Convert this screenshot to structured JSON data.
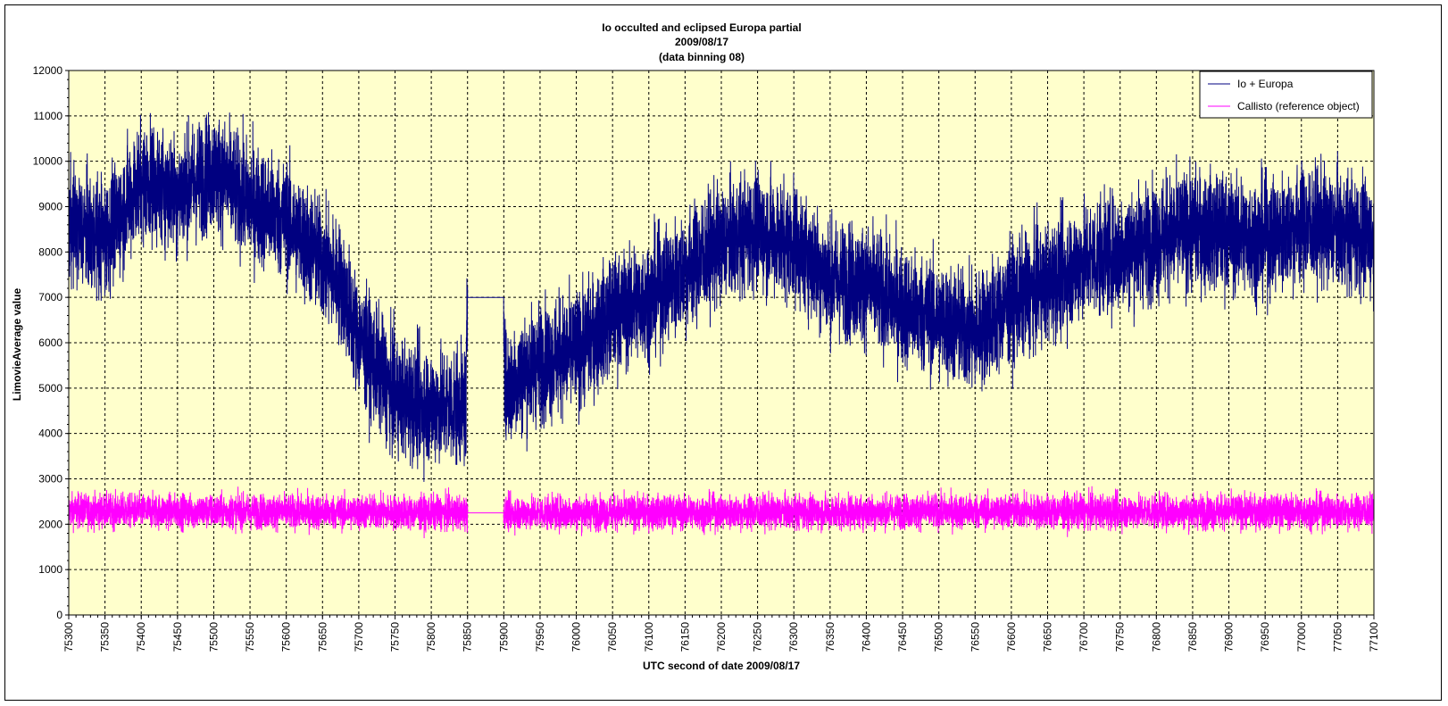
{
  "chart_data": {
    "type": "line",
    "title_lines": [
      "Io occulted and eclipsed Europa partial",
      "2009/08/17",
      "(data binning 08)"
    ],
    "xlabel": "UTC second  of date 2009/08/17",
    "ylabel": "LimovieAverage value",
    "xlim": [
      75300,
      77100
    ],
    "ylim": [
      0,
      12000
    ],
    "x_major_step": 50,
    "y_major_step": 1000,
    "grid": true,
    "plot_background": "#FFFFCC",
    "legend_position": "top-right",
    "x_ticks": [
      "75300",
      "75350",
      "75400",
      "75450",
      "75500",
      "75550",
      "75600",
      "75650",
      "75700",
      "75750",
      "75800",
      "75850",
      "75900",
      "75950",
      "76000",
      "76050",
      "76100",
      "76150",
      "76200",
      "76250",
      "76300",
      "76350",
      "76400",
      "76450",
      "76500",
      "76550",
      "76600",
      "76650",
      "76700",
      "76750",
      "76800",
      "76850",
      "76900",
      "76950",
      "77000",
      "77050",
      "77100"
    ],
    "y_ticks": [
      "0",
      "1000",
      "2000",
      "3000",
      "4000",
      "5000",
      "6000",
      "7000",
      "8000",
      "9000",
      "10000",
      "11000",
      "12000"
    ],
    "series": [
      {
        "name": "Io + Europa",
        "color": "#000080",
        "noise_amplitude": 650,
        "gaps": [],
        "trend": [
          [
            75300,
            8600
          ],
          [
            75350,
            8300
          ],
          [
            75400,
            9600
          ],
          [
            75450,
            9300
          ],
          [
            75500,
            9800
          ],
          [
            75550,
            9100
          ],
          [
            75600,
            8700
          ],
          [
            75650,
            7800
          ],
          [
            75675,
            7300
          ],
          [
            75700,
            6100
          ],
          [
            75750,
            4800
          ],
          [
            75800,
            4600
          ],
          [
            75848,
            4600
          ],
          [
            75850,
            7000
          ],
          [
            75900,
            7000
          ],
          [
            75902,
            5000
          ],
          [
            75950,
            5600
          ],
          [
            76000,
            5800
          ],
          [
            76050,
            6600
          ],
          [
            76100,
            7000
          ],
          [
            76150,
            7600
          ],
          [
            76200,
            8200
          ],
          [
            76250,
            8500
          ],
          [
            76300,
            8200
          ],
          [
            76350,
            7400
          ],
          [
            76400,
            7300
          ],
          [
            76450,
            6800
          ],
          [
            76500,
            6500
          ],
          [
            76550,
            6200
          ],
          [
            76600,
            6900
          ],
          [
            76650,
            7300
          ],
          [
            76700,
            7800
          ],
          [
            76750,
            8000
          ],
          [
            76800,
            8300
          ],
          [
            76850,
            8500
          ],
          [
            76900,
            8400
          ],
          [
            76950,
            8300
          ],
          [
            77000,
            8600
          ],
          [
            77050,
            8500
          ],
          [
            77100,
            8300
          ]
        ]
      },
      {
        "name": "Callisto (reference object)",
        "color": "#FF00FF",
        "noise_amplitude": 190,
        "gaps": [
          [
            75850,
            75900
          ]
        ],
        "trend": [
          [
            75300,
            2300
          ],
          [
            75850,
            2250
          ],
          [
            75900,
            2250
          ],
          [
            76500,
            2280
          ],
          [
            77100,
            2280
          ]
        ]
      }
    ]
  }
}
